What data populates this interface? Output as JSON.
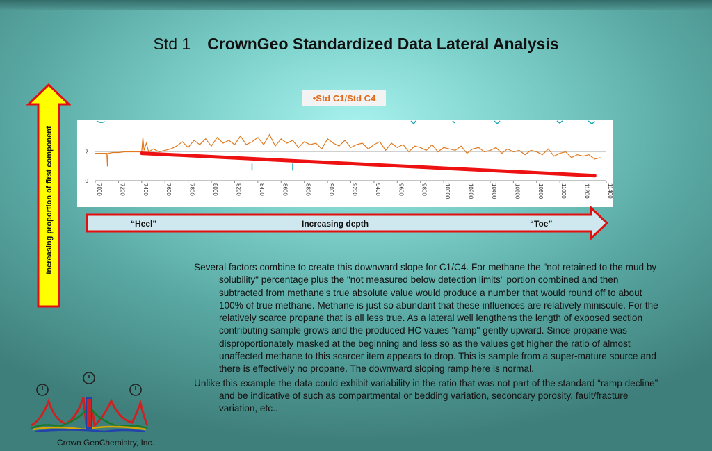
{
  "slide": {
    "title_lead": "Std 1",
    "title_main": "CrownGeo Standardized Data Lateral Analysis",
    "vertical_arrow_label": "Increasing proportion of first component",
    "depth_arrow": {
      "left": "“Heel”",
      "center": "Increasing depth",
      "right": "“Toe”"
    },
    "paragraphs": [
      "Several factors combine to create this downward slope for C1/C4. For methane the \"not retained to the mud by solubility\" percentage plus the \"not measured below detection limits\" portion combined and then subtracted from methane's true absolute value would produce a number that would round off to about 100% of true methane. Methane is just so abundant that these influences are relatively miniscule. For the relatively scarce propane that is all less true. As a lateral well lengthens the length of exposed section contributing sample grows and the produced HC vaues \"ramp\" gently upward. Since propane was disproportionately masked at the beginning and less so as the values get higher the ratio of almost unaffected methane to this scarcer item appears to drop. This is sample from a super-mature source and there is effectively no propane. The downward sloping ramp here is normal.",
      "Unlike this example the data could exhibit variability in the ratio that was not part of the standard “ramp decline” and be indicative of such as compartmental or bedding variation, secondary porosity, fault/fracture variation, etc.."
    ],
    "company": "Crown GeoChemistry, Inc.",
    "colors": {
      "series": "#e07a1f",
      "trend": "#ee1111",
      "teal_trace": "#1aa7b8",
      "arrow_fill_vertical": "#ffff00",
      "arrow_fill_horizontal": "#cfe8f0",
      "arrow_stroke": "#e01010"
    }
  },
  "chart_data": {
    "type": "line",
    "legend": "•Std C1/Std C4",
    "x_ticks": [
      "7000",
      "7200",
      "7400",
      "7600",
      "7800",
      "8000",
      "8200",
      "8400",
      "8600",
      "8800",
      "9000",
      "9200",
      "9400",
      "9600",
      "9800",
      "10000",
      "10200",
      "10400",
      "10600",
      "10800",
      "11000",
      "11200",
      "11400"
    ],
    "y_ticks": [
      "0",
      "2"
    ],
    "xlim": [
      7000,
      11400
    ],
    "ylim": [
      0,
      4
    ],
    "grid": "horizontal",
    "series": [
      {
        "values_x": [
          7000,
          7050,
          7100,
          7105,
          7110,
          7150,
          7200,
          7250,
          7300,
          7350,
          7400,
          7410,
          7420,
          7440,
          7460,
          7500,
          7550,
          7600,
          7650,
          7700,
          7750,
          7800,
          7850,
          7900,
          7950,
          8000,
          8050,
          8100,
          8150,
          8200,
          8250,
          8300,
          8350,
          8400,
          8450,
          8500,
          8550,
          8600,
          8650,
          8700,
          8750,
          8800,
          8850,
          8900,
          8950,
          9000,
          9050,
          9100,
          9150,
          9200,
          9250,
          9300,
          9350,
          9400,
          9450,
          9500,
          9550,
          9600,
          9650,
          9700,
          9750,
          9800,
          9850,
          9900,
          9950,
          10000,
          10050,
          10100,
          10150,
          10200,
          10250,
          10300,
          10350,
          10400,
          10450,
          10500,
          10550,
          10600,
          10650,
          10700,
          10750,
          10800,
          10850,
          10900,
          10950,
          11000,
          11050,
          11100,
          11150,
          11200,
          11250,
          11300,
          11350
        ],
        "values_y": [
          1.9,
          1.9,
          1.9,
          1.0,
          1.9,
          1.95,
          1.95,
          2.0,
          2.0,
          2.0,
          2.0,
          3.0,
          2.1,
          2.6,
          2.0,
          2.2,
          2.0,
          2.1,
          2.2,
          2.4,
          2.7,
          2.3,
          2.8,
          2.5,
          2.9,
          2.4,
          3.0,
          2.6,
          2.8,
          2.5,
          3.1,
          2.5,
          2.7,
          3.0,
          2.5,
          3.2,
          2.4,
          2.9,
          2.6,
          2.8,
          2.3,
          2.7,
          2.5,
          2.6,
          2.2,
          2.9,
          2.6,
          2.4,
          2.8,
          2.3,
          2.5,
          2.6,
          2.2,
          2.5,
          2.7,
          2.1,
          2.6,
          2.3,
          2.5,
          2.0,
          2.4,
          2.3,
          2.1,
          2.5,
          2.0,
          2.3,
          2.2,
          2.1,
          2.4,
          1.9,
          2.2,
          2.3,
          2.0,
          2.1,
          2.3,
          1.9,
          2.2,
          2.0,
          2.1,
          1.8,
          2.1,
          2.0,
          1.8,
          2.2,
          1.7,
          1.9,
          2.0,
          1.6,
          1.8,
          1.7,
          1.8,
          1.5,
          1.6
        ]
      }
    ],
    "trend": {
      "x": [
        7400,
        11300
      ],
      "y": [
        1.9,
        0.35
      ]
    },
    "teal_marks": {
      "x": [
        8350,
        8700
      ],
      "y": [
        0.9,
        0.9
      ]
    }
  }
}
